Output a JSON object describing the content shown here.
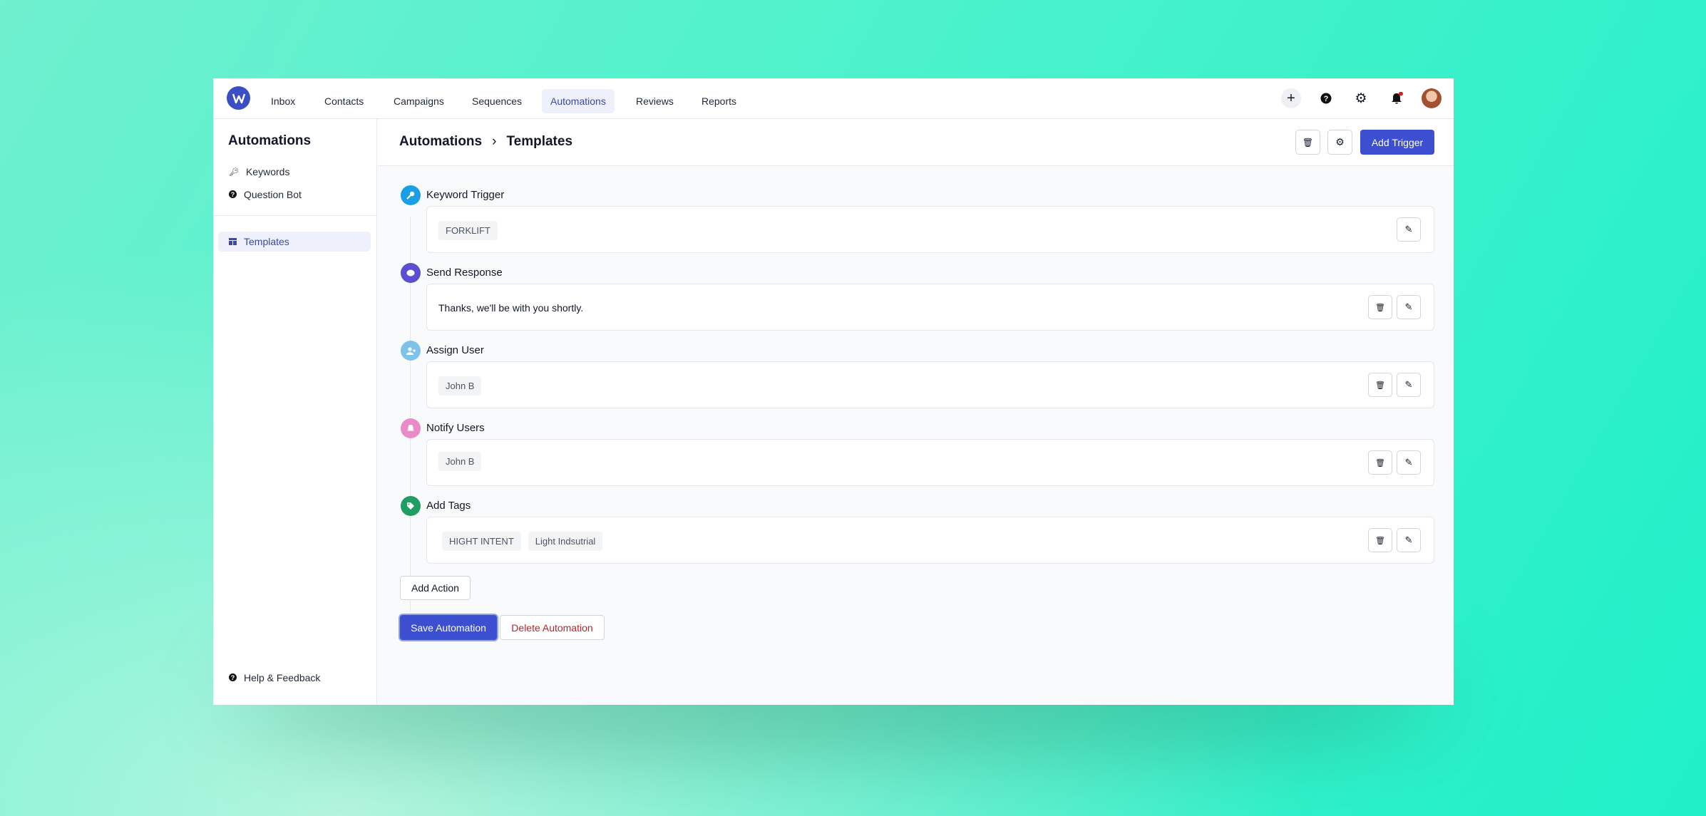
{
  "nav": {
    "items": [
      "Inbox",
      "Contacts",
      "Campaigns",
      "Sequences",
      "Automations",
      "Reviews",
      "Reports"
    ],
    "active": "Automations"
  },
  "sidebar": {
    "title": "Automations",
    "items": [
      "Keywords",
      "Question Bot"
    ],
    "templates": "Templates",
    "help": "Help & Feedback"
  },
  "breadcrumb": {
    "root": "Automations",
    "current": "Templates"
  },
  "header": {
    "add_trigger": "Add Trigger"
  },
  "steps": [
    {
      "label": "Keyword Trigger",
      "chips": [
        "FORKLIFT"
      ],
      "color": "#1a9fe6",
      "icon": "key-icon"
    },
    {
      "label": "Send Response",
      "text": "Thanks, we'll be with you shortly.",
      "color": "#5a4fd1",
      "icon": "chat-icon"
    },
    {
      "label": "Assign User",
      "chips": [
        "John B"
      ],
      "color": "#7ec2ea",
      "icon": "user-plus-icon"
    },
    {
      "label": "Notify Users",
      "chips": [
        "John B"
      ],
      "color": "#e98bc8",
      "icon": "bell-icon"
    },
    {
      "label": "Add Tags",
      "chips": [
        "HIGHT INTENT",
        "Light Indsutrial"
      ],
      "color": "#1f9d63",
      "icon": "tag-icon"
    }
  ],
  "actions": {
    "add_action": "Add Action",
    "save": "Save Automation",
    "delete": "Delete Automation"
  },
  "colors": {
    "primary": "#3b4fd0",
    "danger": "#b3262d",
    "notification": "#e11d1d"
  }
}
